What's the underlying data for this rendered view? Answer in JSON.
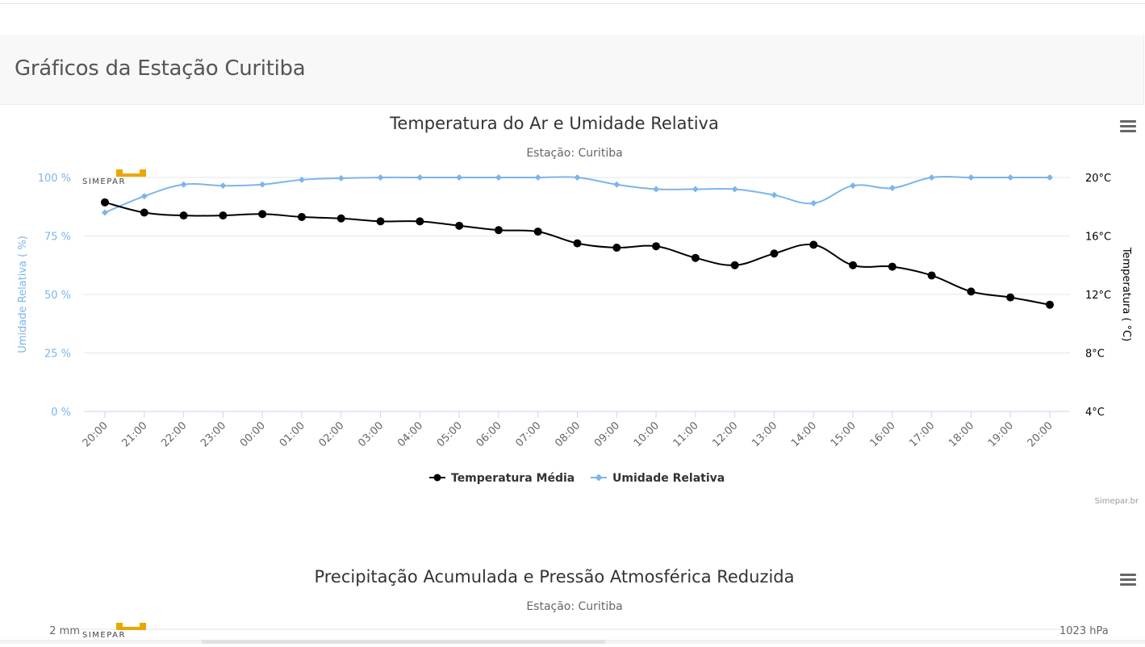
{
  "page": {
    "title": "Gráficos da Estação Curitiba"
  },
  "charts": [
    {
      "title": "Temperatura do Ar e Umidade Relativa",
      "subtitle": "Estação: Curitiba",
      "credits": "Simepar.br",
      "logo_text": "SIMEPAR",
      "left_axis": {
        "title": "Umidade Relativa ( %)",
        "ticks": [
          "0 %",
          "25 %",
          "50 %",
          "75 %",
          "100 %"
        ]
      },
      "right_axis": {
        "title": "Temperatura ( °C)",
        "ticks": [
          "4°C",
          "8°C",
          "12°C",
          "16°C",
          "20°C"
        ]
      },
      "legend": [
        {
          "name": "Temperatura Média",
          "color": "#000000",
          "marker": "circle"
        },
        {
          "name": "Umidade Relativa",
          "color": "#7cb5ec",
          "marker": "diamond"
        }
      ],
      "menu_icon": "hamburger-menu-icon"
    },
    {
      "title": "Precipitação Acumulada e Pressão Atmosférica Reduzida",
      "subtitle": "Estação: Curitiba",
      "logo_text": "SIMEPAR",
      "left_axis": {
        "top_tick": "2 mm"
      },
      "right_axis": {
        "top_tick": "1023 hPa"
      },
      "menu_icon": "hamburger-menu-icon"
    }
  ],
  "chart_data": [
    {
      "type": "line",
      "title": "Temperatura do Ar e Umidade Relativa",
      "subtitle": "Estação: Curitiba",
      "x": [
        "20:00",
        "21:00",
        "22:00",
        "23:00",
        "00:00",
        "01:00",
        "02:00",
        "03:00",
        "04:00",
        "05:00",
        "06:00",
        "07:00",
        "08:00",
        "09:00",
        "10:00",
        "11:00",
        "12:00",
        "13:00",
        "14:00",
        "15:00",
        "16:00",
        "17:00",
        "18:00",
        "19:00",
        "20:00"
      ],
      "series": [
        {
          "name": "Temperatura Média",
          "axis": "right",
          "unit": "°C",
          "color": "#000000",
          "values": [
            18.3,
            17.6,
            17.4,
            17.4,
            17.5,
            17.3,
            17.2,
            17.0,
            17.0,
            16.7,
            16.4,
            16.3,
            15.5,
            15.2,
            15.3,
            14.5,
            14.0,
            14.8,
            15.4,
            14.0,
            13.9,
            13.3,
            12.2,
            11.8,
            11.3
          ]
        },
        {
          "name": "Umidade Relativa",
          "axis": "left",
          "unit": "%",
          "color": "#7cb5ec",
          "values": [
            85,
            92,
            97,
            96.5,
            97,
            99,
            99.7,
            100,
            100,
            100,
            100,
            100,
            100,
            97,
            95,
            95,
            95,
            92.5,
            89,
            96.5,
            95.5,
            100,
            100,
            100,
            100
          ]
        }
      ],
      "ylim_left": [
        0,
        100
      ],
      "ylim_right": [
        4,
        20
      ],
      "grid": true,
      "legend_position": "bottom-center"
    },
    {
      "type": "bar",
      "title": "Precipitação Acumulada e Pressão Atmosférica Reduzida",
      "subtitle": "Estação: Curitiba",
      "visible_ticks": {
        "left_top": "2 mm",
        "right_top": "1023 hPa"
      },
      "note": "chart cut off at bottom edge of screenshot"
    }
  ]
}
